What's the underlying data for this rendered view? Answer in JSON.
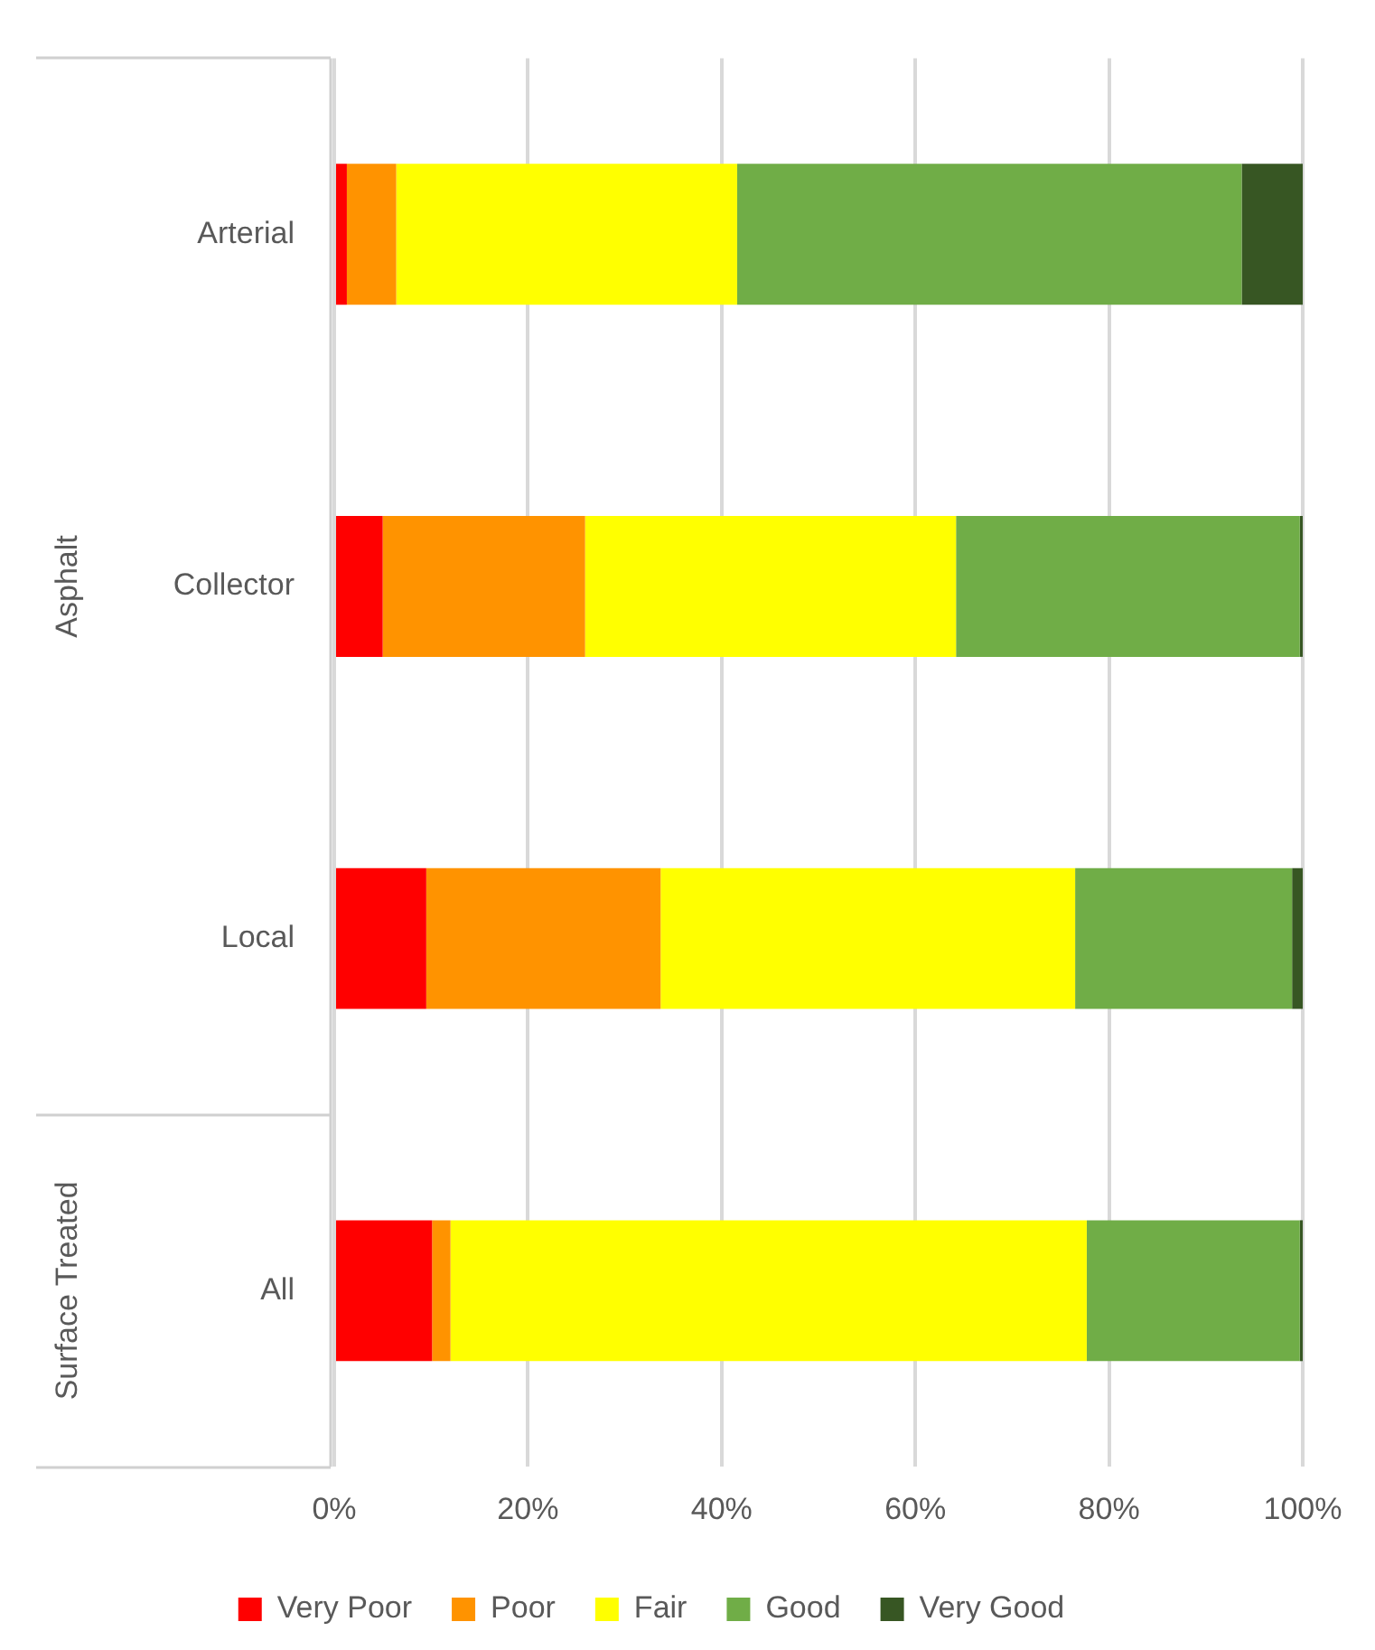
{
  "chart_data": {
    "type": "bar",
    "orientation": "horizontal",
    "stacked": true,
    "categories": [
      "Arterial",
      "Collector",
      "Local",
      "All"
    ],
    "series": [
      {
        "name": "Very Poor",
        "color": "#ff0000",
        "values": [
          1.3,
          5.0,
          9.5,
          10.1
        ]
      },
      {
        "name": "Poor",
        "color": "#ff9300",
        "values": [
          5.1,
          20.9,
          24.2,
          1.9
        ]
      },
      {
        "name": "Fair",
        "color": "#ffff00",
        "values": [
          35.2,
          38.3,
          42.8,
          65.7
        ]
      },
      {
        "name": "Good",
        "color": "#70ad47",
        "values": [
          52.1,
          35.5,
          22.4,
          22.0
        ]
      },
      {
        "name": "Very Good",
        "color": "#375623",
        "values": [
          6.3,
          0.3,
          1.1,
          0.3
        ]
      }
    ],
    "xlim": [
      0,
      100
    ],
    "xticks": [
      {
        "value": 0,
        "label": "0%"
      },
      {
        "value": 20,
        "label": "20%"
      },
      {
        "value": 40,
        "label": "40%"
      },
      {
        "value": 60,
        "label": "60%"
      },
      {
        "value": 80,
        "label": "80%"
      },
      {
        "value": 100,
        "label": "100%"
      }
    ],
    "grid": "x",
    "legend": "bottom",
    "annotations": [
      "Asphalt",
      "Surface Treated"
    ]
  }
}
